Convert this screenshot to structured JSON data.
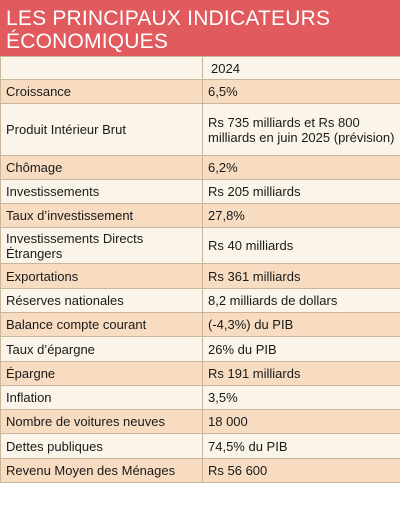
{
  "title": "LES PRINCIPAUX INDICATEURS ÉCONOMIQUES",
  "column_header": "2024",
  "colors": {
    "header_bg": "#e05a5e",
    "row_light": "#fbf4e8",
    "row_dark": "#f7dcc2",
    "border": "#c9b69a"
  },
  "rows": [
    {
      "label": "Croissance",
      "value": "6,5%"
    },
    {
      "label": "Produit Intérieur Brut",
      "value": "Rs 735 milliards et Rs 800 milliards en juin 2025 (prévision)"
    },
    {
      "label": "Chômage",
      "value": "6,2%"
    },
    {
      "label": "Investissements",
      "value": "Rs 205 milliards"
    },
    {
      "label": "Taux d’investissement",
      "value": "27,8%"
    },
    {
      "label": "Investissements Directs Étrangers",
      "value": "Rs 40 milliards"
    },
    {
      "label": "Exportations",
      "value": "Rs 361 milliards"
    },
    {
      "label": "Réserves nationales",
      "value": " 8,2 milliards de dollars"
    },
    {
      "label": "Balance compte courant",
      "value": "(-4,3%) du PIB"
    },
    {
      "label": "Taux d’épargne",
      "value": "26% du PIB"
    },
    {
      "label": "Épargne",
      "value": "Rs 191 milliards"
    },
    {
      "label": "Inflation",
      "value": "3,5%"
    },
    {
      "label": "Nombre de voitures neuves",
      "value": "18 000"
    },
    {
      "label": "Dettes publiques",
      "value": "74,5% du PIB"
    },
    {
      "label": "Revenu Moyen des Ménages",
      "value": "Rs 56 600"
    }
  ]
}
